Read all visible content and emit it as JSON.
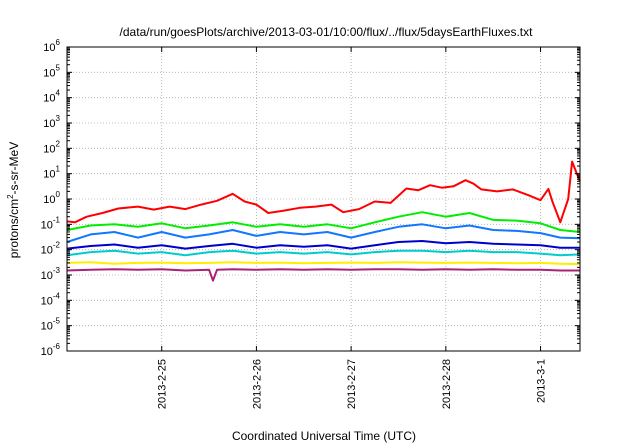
{
  "chart_data": {
    "type": "line",
    "title": "/data/run/goesPlots/archive/2013-03-01/10:00/flux/../flux/5daysEarthFluxes.txt",
    "xlabel": "Coordinated Universal Time (UTC)",
    "ylabel": {
      "pre": "protons/cm",
      "sup": "2",
      "post": "-s-sr-MeV"
    },
    "yscale": "log",
    "ylim": [
      1e-06,
      1000000.0
    ],
    "xlim": [
      "2013-02-24 00:00",
      "2013-03-01 10:00"
    ],
    "grid": true,
    "legend": "none",
    "y_tick_labels": [
      {
        "base": "10",
        "exp": "-6"
      },
      {
        "base": "10",
        "exp": "-5"
      },
      {
        "base": "10",
        "exp": "-4"
      },
      {
        "base": "10",
        "exp": "-3"
      },
      {
        "base": "10",
        "exp": "-2"
      },
      {
        "base": "10",
        "exp": "-1"
      },
      {
        "base": "10",
        "exp": "0"
      },
      {
        "base": "10",
        "exp": "1"
      },
      {
        "base": "10",
        "exp": "2"
      },
      {
        "base": "10",
        "exp": "3"
      },
      {
        "base": "10",
        "exp": "4"
      },
      {
        "base": "10",
        "exp": "5"
      },
      {
        "base": "10",
        "exp": "6"
      }
    ],
    "x_tick_labels": [
      "2013-2-25",
      "2013-2-26",
      "2013-2-27",
      "2013-2-28",
      "2013-3-1"
    ],
    "x_tick_dates": [
      "2013-02-25",
      "2013-02-26",
      "2013-02-27",
      "2013-02-28",
      "2013-03-01"
    ],
    "x_grid_dates": [
      "2013-02-25",
      "2013-02-26",
      "2013-02-27",
      "2013-02-28",
      "2013-03-01"
    ],
    "series": [
      {
        "color": "#ff0000",
        "points": [
          [
            "2013-02-24 00:00",
            0.13
          ],
          [
            "2013-02-24 02:00",
            0.12
          ],
          [
            "2013-02-24 05:00",
            0.2
          ],
          [
            "2013-02-24 09:00",
            0.28
          ],
          [
            "2013-02-24 13:00",
            0.42
          ],
          [
            "2013-02-24 18:00",
            0.5
          ],
          [
            "2013-02-24 22:00",
            0.38
          ],
          [
            "2013-02-25 02:00",
            0.5
          ],
          [
            "2013-02-25 06:00",
            0.4
          ],
          [
            "2013-02-25 10:00",
            0.6
          ],
          [
            "2013-02-25 14:00",
            0.85
          ],
          [
            "2013-02-25 18:00",
            1.6
          ],
          [
            "2013-02-25 21:00",
            0.8
          ],
          [
            "2013-02-26 00:00",
            0.6
          ],
          [
            "2013-02-26 03:00",
            0.28
          ],
          [
            "2013-02-26 07:00",
            0.35
          ],
          [
            "2013-02-26 11:00",
            0.45
          ],
          [
            "2013-02-26 15:00",
            0.5
          ],
          [
            "2013-02-26 19:00",
            0.6
          ],
          [
            "2013-02-26 22:00",
            0.3
          ],
          [
            "2013-02-27 02:00",
            0.4
          ],
          [
            "2013-02-27 06:00",
            0.8
          ],
          [
            "2013-02-27 10:00",
            0.7
          ],
          [
            "2013-02-27 14:00",
            2.6
          ],
          [
            "2013-02-27 17:00",
            2.2
          ],
          [
            "2013-02-27 20:00",
            3.5
          ],
          [
            "2013-02-27 23:00",
            2.8
          ],
          [
            "2013-02-28 02:00",
            3.2
          ],
          [
            "2013-02-28 05:00",
            5.5
          ],
          [
            "2013-02-28 07:00",
            4.0
          ],
          [
            "2013-02-28 09:00",
            2.4
          ],
          [
            "2013-02-28 13:00",
            2.0
          ],
          [
            "2013-02-28 17:00",
            2.4
          ],
          [
            "2013-02-28 21:00",
            1.4
          ],
          [
            "2013-03-01 00:00",
            0.9
          ],
          [
            "2013-03-01 02:00",
            2.5
          ],
          [
            "2013-03-01 03:00",
            0.8
          ],
          [
            "2013-03-01 05:00",
            0.12
          ],
          [
            "2013-03-01 07:00",
            1.0
          ],
          [
            "2013-03-01 08:00",
            30.0
          ],
          [
            "2013-03-01 09:00",
            12.0
          ],
          [
            "2013-03-01 10:00",
            5.0
          ]
        ]
      },
      {
        "color": "#00ee00",
        "points": [
          [
            "2013-02-24 00:00",
            0.06
          ],
          [
            "2013-02-24 06:00",
            0.09
          ],
          [
            "2013-02-24 12:00",
            0.1
          ],
          [
            "2013-02-24 18:00",
            0.08
          ],
          [
            "2013-02-25 00:00",
            0.11
          ],
          [
            "2013-02-25 06:00",
            0.07
          ],
          [
            "2013-02-25 12:00",
            0.09
          ],
          [
            "2013-02-25 18:00",
            0.12
          ],
          [
            "2013-02-26 00:00",
            0.08
          ],
          [
            "2013-02-26 06:00",
            0.1
          ],
          [
            "2013-02-26 12:00",
            0.08
          ],
          [
            "2013-02-26 18:00",
            0.1
          ],
          [
            "2013-02-27 00:00",
            0.07
          ],
          [
            "2013-02-27 06:00",
            0.12
          ],
          [
            "2013-02-27 12:00",
            0.2
          ],
          [
            "2013-02-27 18:00",
            0.3
          ],
          [
            "2013-02-28 00:00",
            0.2
          ],
          [
            "2013-02-28 06:00",
            0.28
          ],
          [
            "2013-02-28 12:00",
            0.15
          ],
          [
            "2013-02-28 18:00",
            0.14
          ],
          [
            "2013-03-01 00:00",
            0.11
          ],
          [
            "2013-03-01 05:00",
            0.06
          ],
          [
            "2013-03-01 10:00",
            0.05
          ]
        ]
      },
      {
        "color": "#1177ff",
        "points": [
          [
            "2013-02-24 00:00",
            0.02
          ],
          [
            "2013-02-24 06:00",
            0.04
          ],
          [
            "2013-02-24 12:00",
            0.05
          ],
          [
            "2013-02-24 18:00",
            0.03
          ],
          [
            "2013-02-25 00:00",
            0.05
          ],
          [
            "2013-02-25 06:00",
            0.03
          ],
          [
            "2013-02-25 12:00",
            0.04
          ],
          [
            "2013-02-25 18:00",
            0.06
          ],
          [
            "2013-02-26 00:00",
            0.035
          ],
          [
            "2013-02-26 06:00",
            0.05
          ],
          [
            "2013-02-26 12:00",
            0.04
          ],
          [
            "2013-02-26 18:00",
            0.05
          ],
          [
            "2013-02-27 00:00",
            0.03
          ],
          [
            "2013-02-27 06:00",
            0.05
          ],
          [
            "2013-02-27 12:00",
            0.08
          ],
          [
            "2013-02-27 18:00",
            0.1
          ],
          [
            "2013-02-28 00:00",
            0.07
          ],
          [
            "2013-02-28 06:00",
            0.09
          ],
          [
            "2013-02-28 12:00",
            0.06
          ],
          [
            "2013-02-28 18:00",
            0.055
          ],
          [
            "2013-03-01 00:00",
            0.045
          ],
          [
            "2013-03-01 05:00",
            0.03
          ],
          [
            "2013-03-01 10:00",
            0.028
          ]
        ]
      },
      {
        "color": "#0000cc",
        "points": [
          [
            "2013-02-24 00:00",
            0.011
          ],
          [
            "2013-02-24 06:00",
            0.014
          ],
          [
            "2013-02-24 12:00",
            0.016
          ],
          [
            "2013-02-24 18:00",
            0.012
          ],
          [
            "2013-02-25 00:00",
            0.015
          ],
          [
            "2013-02-25 06:00",
            0.011
          ],
          [
            "2013-02-25 12:00",
            0.014
          ],
          [
            "2013-02-25 18:00",
            0.017
          ],
          [
            "2013-02-26 00:00",
            0.012
          ],
          [
            "2013-02-26 06:00",
            0.015
          ],
          [
            "2013-02-26 12:00",
            0.013
          ],
          [
            "2013-02-26 18:00",
            0.015
          ],
          [
            "2013-02-27 00:00",
            0.011
          ],
          [
            "2013-02-27 06:00",
            0.015
          ],
          [
            "2013-02-27 12:00",
            0.02
          ],
          [
            "2013-02-27 18:00",
            0.022
          ],
          [
            "2013-02-28 00:00",
            0.018
          ],
          [
            "2013-02-28 06:00",
            0.02
          ],
          [
            "2013-02-28 12:00",
            0.017
          ],
          [
            "2013-02-28 18:00",
            0.016
          ],
          [
            "2013-03-01 00:00",
            0.015
          ],
          [
            "2013-03-01 05:00",
            0.012
          ],
          [
            "2013-03-01 10:00",
            0.012
          ]
        ]
      },
      {
        "color": "#00cccc",
        "points": [
          [
            "2013-02-24 00:00",
            0.006
          ],
          [
            "2013-02-24 06:00",
            0.008
          ],
          [
            "2013-02-24 12:00",
            0.009
          ],
          [
            "2013-02-24 18:00",
            0.007
          ],
          [
            "2013-02-25 00:00",
            0.008
          ],
          [
            "2013-02-25 06:00",
            0.006
          ],
          [
            "2013-02-25 12:00",
            0.008
          ],
          [
            "2013-02-25 18:00",
            0.009
          ],
          [
            "2013-02-26 00:00",
            0.007
          ],
          [
            "2013-02-26 06:00",
            0.008
          ],
          [
            "2013-02-26 12:00",
            0.007
          ],
          [
            "2013-02-26 18:00",
            0.008
          ],
          [
            "2013-02-27 00:00",
            0.0065
          ],
          [
            "2013-02-27 06:00",
            0.008
          ],
          [
            "2013-02-27 12:00",
            0.009
          ],
          [
            "2013-02-27 18:00",
            0.009
          ],
          [
            "2013-02-28 00:00",
            0.008
          ],
          [
            "2013-02-28 06:00",
            0.009
          ],
          [
            "2013-02-28 12:00",
            0.008
          ],
          [
            "2013-02-28 18:00",
            0.008
          ],
          [
            "2013-03-01 00:00",
            0.007
          ],
          [
            "2013-03-01 05:00",
            0.006
          ],
          [
            "2013-03-01 10:00",
            0.0065
          ]
        ]
      },
      {
        "color": "#ffee00",
        "points": [
          [
            "2013-02-24 00:00",
            0.003
          ],
          [
            "2013-02-24 06:00",
            0.0032
          ],
          [
            "2013-02-24 12:00",
            0.0028
          ],
          [
            "2013-02-24 18:00",
            0.003
          ],
          [
            "2013-02-25 00:00",
            0.0031
          ],
          [
            "2013-02-25 06:00",
            0.0029
          ],
          [
            "2013-02-25 12:00",
            0.003
          ],
          [
            "2013-02-25 18:00",
            0.0032
          ],
          [
            "2013-02-26 00:00",
            0.003
          ],
          [
            "2013-02-26 06:00",
            0.0031
          ],
          [
            "2013-02-26 12:00",
            0.0029
          ],
          [
            "2013-02-26 18:00",
            0.003
          ],
          [
            "2013-02-27 00:00",
            0.0031
          ],
          [
            "2013-02-27 06:00",
            0.003
          ],
          [
            "2013-02-27 12:00",
            0.0032
          ],
          [
            "2013-02-27 18:00",
            0.0031
          ],
          [
            "2013-02-28 00:00",
            0.003
          ],
          [
            "2013-02-28 06:00",
            0.0031
          ],
          [
            "2013-02-28 12:00",
            0.003
          ],
          [
            "2013-02-28 18:00",
            0.0029
          ],
          [
            "2013-03-01 00:00",
            0.003
          ],
          [
            "2013-03-01 05:00",
            0.0028
          ],
          [
            "2013-03-01 10:00",
            0.0027
          ]
        ]
      },
      {
        "color": "#aa2277",
        "points": [
          [
            "2013-02-24 00:00",
            0.0015
          ],
          [
            "2013-02-24 06:00",
            0.0016
          ],
          [
            "2013-02-24 12:00",
            0.0017
          ],
          [
            "2013-02-24 18:00",
            0.0016
          ],
          [
            "2013-02-25 00:00",
            0.0017
          ],
          [
            "2013-02-25 06:00",
            0.0015
          ],
          [
            "2013-02-25 12:00",
            0.0016
          ],
          [
            "2013-02-25 13:00",
            0.0006
          ],
          [
            "2013-02-25 14:00",
            0.0016
          ],
          [
            "2013-02-25 18:00",
            0.0017
          ],
          [
            "2013-02-26 00:00",
            0.0016
          ],
          [
            "2013-02-26 06:00",
            0.0017
          ],
          [
            "2013-02-26 12:00",
            0.0016
          ],
          [
            "2013-02-26 18:00",
            0.0017
          ],
          [
            "2013-02-27 00:00",
            0.0016
          ],
          [
            "2013-02-27 06:00",
            0.0017
          ],
          [
            "2013-02-27 12:00",
            0.0017
          ],
          [
            "2013-02-27 18:00",
            0.0016
          ],
          [
            "2013-02-28 00:00",
            0.0017
          ],
          [
            "2013-02-28 06:00",
            0.0016
          ],
          [
            "2013-02-28 12:00",
            0.0017
          ],
          [
            "2013-02-28 18:00",
            0.0016
          ],
          [
            "2013-03-01 00:00",
            0.0016
          ],
          [
            "2013-03-01 05:00",
            0.0015
          ],
          [
            "2013-03-01 10:00",
            0.0015
          ]
        ]
      }
    ]
  }
}
